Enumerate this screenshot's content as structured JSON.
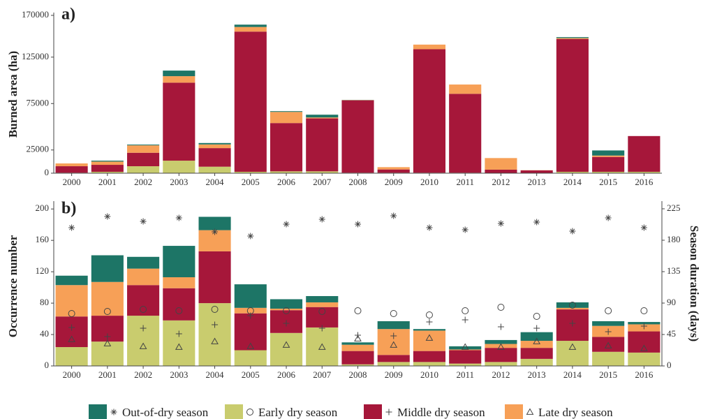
{
  "chart_data": [
    {
      "type": "bar",
      "label": "a)",
      "ylabel": "Burned area (ha)",
      "categories": [
        "2000",
        "2001",
        "2002",
        "2003",
        "2004",
        "2005",
        "2006",
        "2007",
        "2008",
        "2009",
        "2010",
        "2011",
        "2012",
        "2013",
        "2014",
        "2015",
        "2016"
      ],
      "series": [
        {
          "name": "Early dry season",
          "color": "#c9cc6e",
          "values": [
            500,
            1500,
            7500,
            13500,
            7000,
            1500,
            2000,
            2000,
            500,
            500,
            500,
            500,
            300,
            200,
            1500,
            1500,
            1500
          ]
        },
        {
          "name": "Middle dry season",
          "color": "#a6173a",
          "values": [
            7000,
            7500,
            14500,
            84000,
            20000,
            151000,
            52000,
            57000,
            78000,
            3500,
            133000,
            85000,
            3500,
            2800,
            143000,
            16000,
            38500
          ]
        },
        {
          "name": "Late dry season",
          "color": "#f7a057",
          "values": [
            3000,
            3500,
            8000,
            7000,
            4000,
            5000,
            12000,
            1000,
            300,
            2500,
            5000,
            10000,
            12500,
            200,
            1000,
            1500,
            0
          ]
        },
        {
          "name": "Out-of-dry season",
          "color": "#1d7566",
          "values": [
            0,
            1000,
            800,
            6000,
            1500,
            2500,
            800,
            3000,
            200,
            0,
            0,
            0,
            0,
            0,
            1000,
            5500,
            0
          ]
        }
      ],
      "stacked": true,
      "ylim": [
        0,
        173000
      ],
      "yticks": [
        0,
        25000,
        75000,
        125000,
        170000
      ]
    },
    {
      "type": "bar",
      "label": "b)",
      "ylabel": "Occurrence number",
      "y2label": "Season duration (days)",
      "categories": [
        "2000",
        "2001",
        "2002",
        "2003",
        "2004",
        "2005",
        "2006",
        "2007",
        "2008",
        "2009",
        "2010",
        "2011",
        "2012",
        "2013",
        "2014",
        "2015",
        "2016"
      ],
      "series": [
        {
          "color": "#c9cc6e",
          "values": [
            24,
            31,
            64,
            58,
            80,
            20,
            42,
            49,
            2,
            5,
            5,
            3,
            5,
            9,
            32,
            18,
            17
          ]
        },
        {
          "color": "#a6173a",
          "values": [
            39,
            33,
            39,
            41,
            66,
            47,
            29,
            26,
            17,
            9,
            14,
            17,
            18,
            14,
            40,
            19,
            27
          ]
        },
        {
          "color": "#f7a057",
          "values": [
            40,
            43,
            21,
            14,
            27,
            7,
            2,
            6,
            8,
            33,
            26,
            1,
            5,
            9,
            2,
            14,
            9
          ]
        },
        {
          "color": "#1d7566",
          "values": [
            12,
            34,
            15,
            40,
            17,
            30,
            12,
            8,
            3,
            10,
            2,
            4,
            5,
            11,
            7,
            6,
            3
          ]
        }
      ],
      "stacked": true,
      "durations": [
        {
          "marker": "circle",
          "axis": "y2",
          "values": [
            75,
            78,
            81,
            79,
            81,
            79,
            79,
            78,
            79,
            75,
            73,
            79,
            84,
            71,
            87,
            79,
            79
          ]
        },
        {
          "marker": "plus",
          "axis": "y2",
          "values": [
            55,
            42,
            54,
            46,
            59,
            72,
            61,
            54,
            44,
            43,
            63,
            66,
            56,
            54,
            61,
            49,
            57
          ]
        },
        {
          "marker": "triangle",
          "axis": "y2",
          "values": [
            38,
            32,
            28,
            27,
            35,
            28,
            30,
            27,
            39,
            30,
            40,
            27,
            27,
            35,
            27,
            29,
            25
          ]
        },
        {
          "marker": "star",
          "axis": "y2",
          "values": [
            198,
            214,
            207,
            212,
            192,
            186,
            203,
            210,
            203,
            215,
            198,
            195,
            204,
            206,
            193,
            212,
            198
          ]
        }
      ],
      "ylim": [
        0,
        210
      ],
      "yticks": [
        0,
        40,
        80,
        120,
        160,
        200
      ],
      "y2lim": [
        0,
        236
      ],
      "y2ticks": [
        0,
        45,
        90,
        135,
        180,
        225
      ]
    }
  ]
}
